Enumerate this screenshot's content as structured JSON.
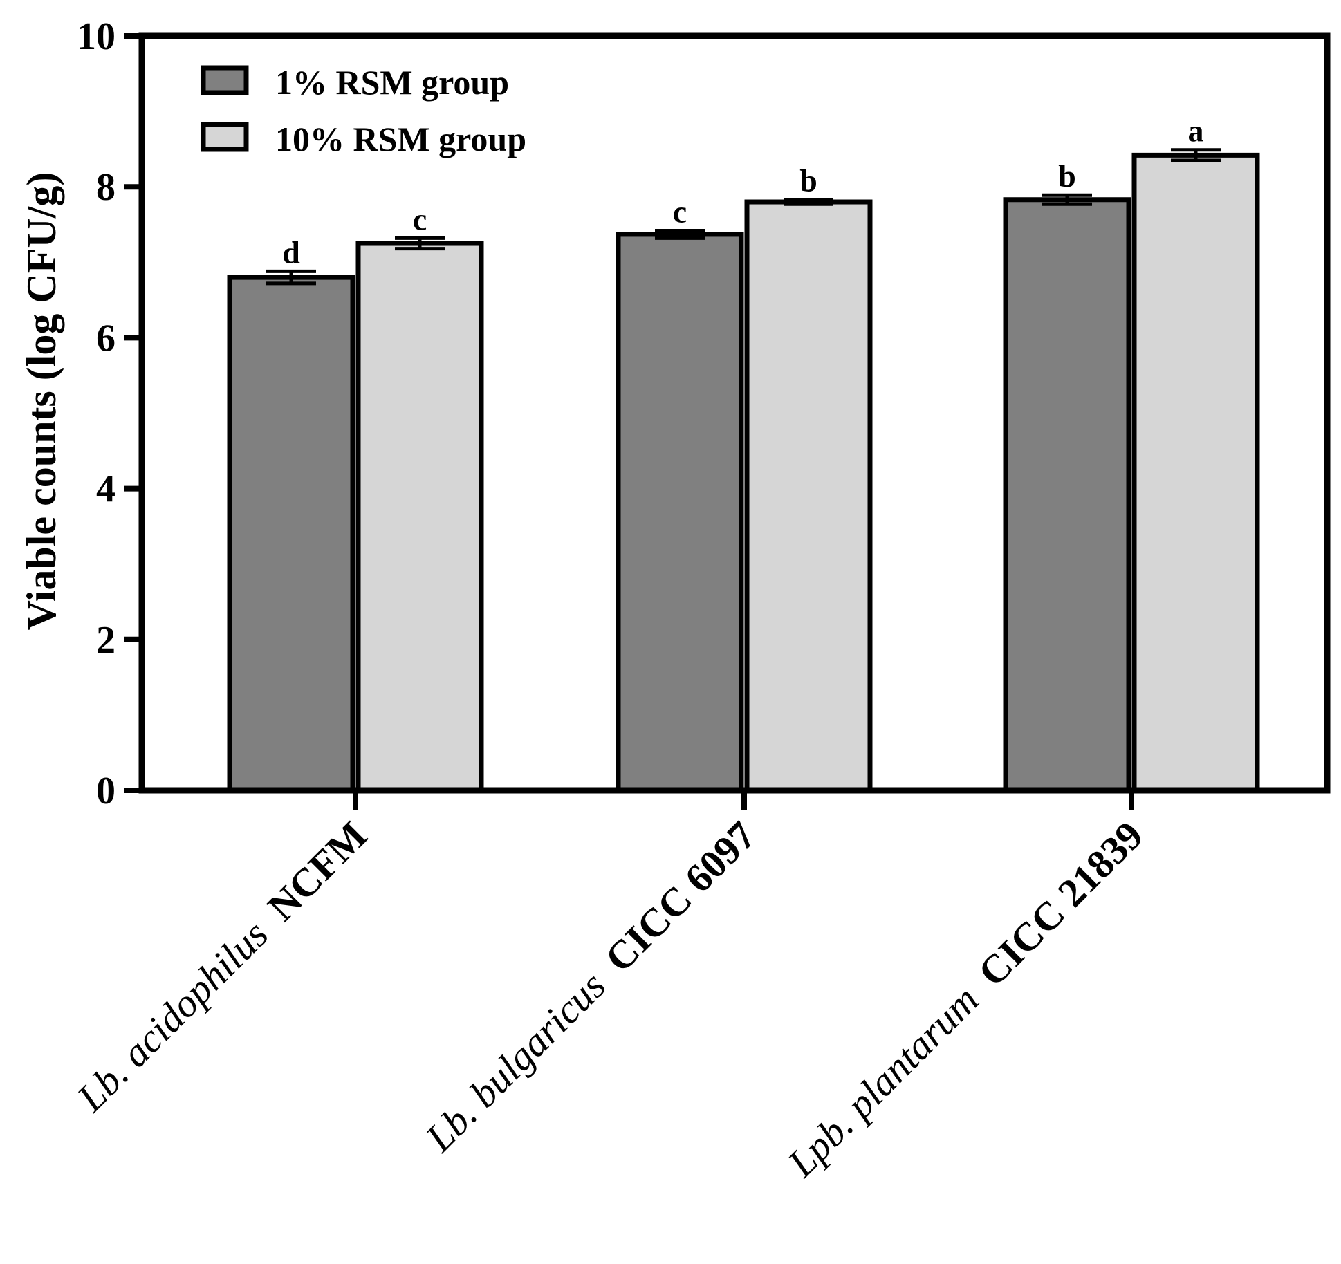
{
  "chart_data": {
    "type": "bar",
    "ylabel": "Viable counts (log CFU/g)",
    "xlabel": "",
    "ylim": [
      0,
      10
    ],
    "yticks": [
      0,
      2,
      4,
      6,
      8,
      10
    ],
    "legend_position": "top-left",
    "categories": [
      {
        "italic": "Lb. acidophilus",
        "bold": "NCFM"
      },
      {
        "italic": "Lb. bulgaricus",
        "bold": "CICC 6097"
      },
      {
        "italic": "Lpb. plantarum",
        "bold": "CICC 21839"
      }
    ],
    "series": [
      {
        "name": "1% RSM group",
        "color": "#808080",
        "values": [
          6.8,
          7.37,
          7.83
        ],
        "errors": [
          0.08,
          0.05,
          0.06
        ],
        "labels": [
          "d",
          "c",
          "b"
        ]
      },
      {
        "name": "10% RSM group",
        "color": "#d6d6d6",
        "values": [
          7.25,
          7.8,
          8.42
        ],
        "errors": [
          0.07,
          0.03,
          0.07
        ],
        "labels": [
          "c",
          "b",
          "a"
        ]
      }
    ]
  }
}
